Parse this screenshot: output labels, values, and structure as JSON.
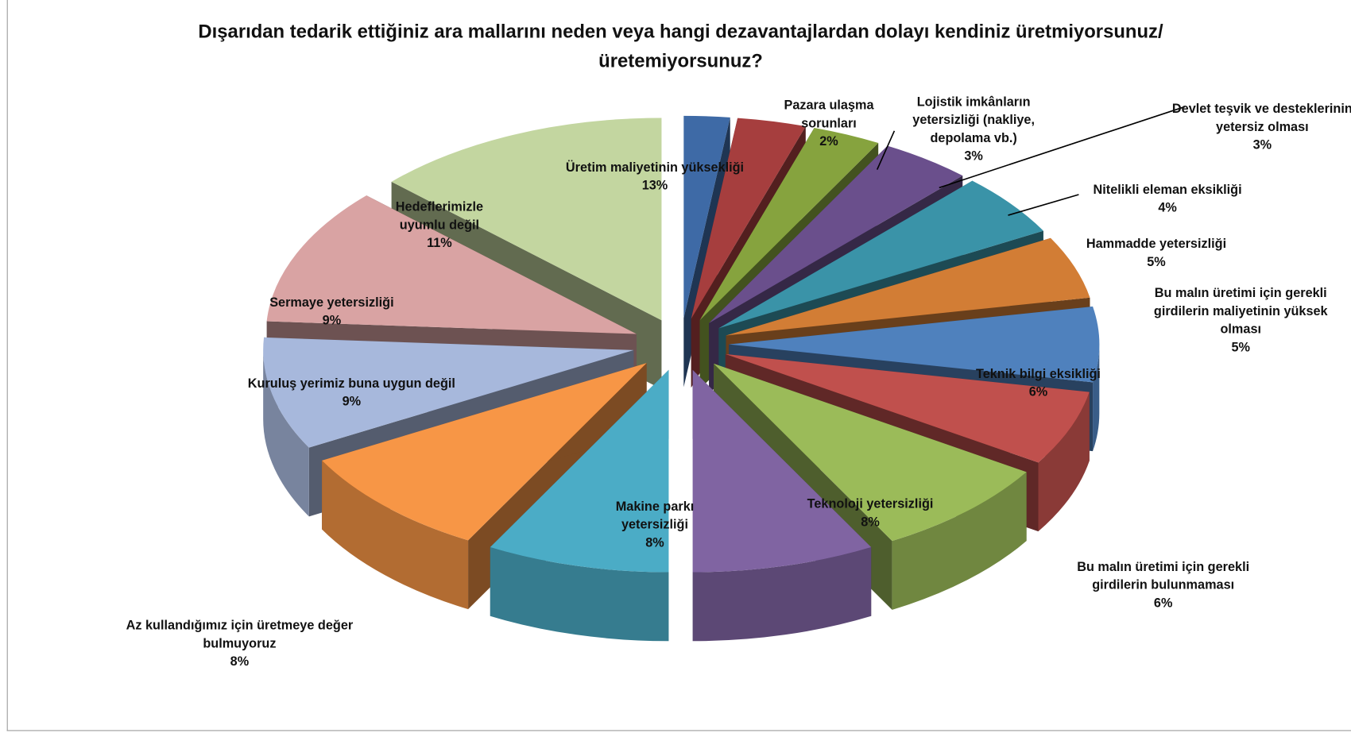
{
  "chart_data": {
    "type": "pie",
    "title": "Dışarıdan tedarik ettiğiniz ara mallarını neden veya hangi dezavantajlardan dolayı kendiniz üretmiyorsunuz/üretemiyorsunuz?",
    "categories": [
      "Pazara ulaşma sorunları",
      "Lojistik imkânların yetersizliği (nakliye, depolama vb.)",
      "Devlet teşvik ve desteklerinin yetersiz olması",
      "Nitelikli eleman eksikliği",
      "Hammadde yetersizliği",
      "Bu malın üretimi için gerekli girdilerin maliyetinin yüksek olması",
      "Teknik bilgi eksikliği",
      "Bu malın üretimi için gerekli girdilerin bulunmaması",
      "Teknoloji yetersizliği",
      "Makine parkı yetersizliği",
      "Az kullandığımız için üretmeye değer bulmuyoruz",
      "Kuruluş yerimiz buna uygun değil",
      "Sermaye yetersizliği",
      "Hedeflerimizle uyumlu değil",
      "Üretim maliyetinin yüksekliği"
    ],
    "values": [
      2,
      3,
      3,
      4,
      5,
      5,
      6,
      6,
      8,
      8,
      8,
      9,
      9,
      11,
      13
    ],
    "value_labels": [
      "2%",
      "3%",
      "3%",
      "4%",
      "5%",
      "5%",
      "6%",
      "6%",
      "8%",
      "8%",
      "8%",
      "9%",
      "9%",
      "11%",
      "13%"
    ],
    "colors": [
      "#3e6aa6",
      "#a63e3e",
      "#86a33e",
      "#6a4f8c",
      "#3a93a8",
      "#d27d35",
      "#4f81bd",
      "#c0504d",
      "#9bbb59",
      "#8064a2",
      "#4bacc6",
      "#f79646",
      "#a7b8dc",
      "#d9a3a3",
      "#c3d6a0"
    ]
  }
}
